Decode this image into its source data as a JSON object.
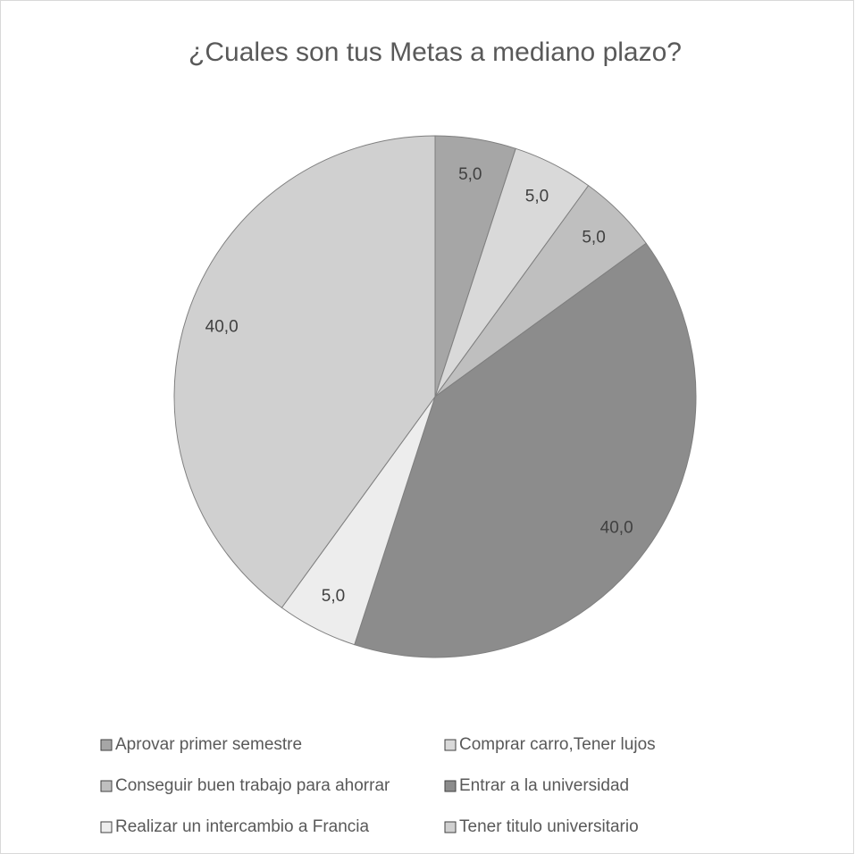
{
  "chart_data": {
    "type": "pie",
    "title": "¿Cuales son tus Metas a mediano plazo?",
    "categories": [
      "Aprovar primer semestre",
      "Comprar carro,Tener lujos",
      "Conseguir buen trabajo para ahorrar",
      "Entrar a la universidad",
      "Realizar un intercambio a Francia",
      "Tener titulo universitario"
    ],
    "values": [
      5,
      5,
      5,
      40,
      5,
      40
    ],
    "value_labels": [
      "5,0",
      "5,0",
      "5,0",
      "40,0",
      "5,0",
      "40,0"
    ],
    "colors": [
      "#a6a6a6",
      "#d9d9d9",
      "#bfbfbf",
      "#8c8c8c",
      "#ededed",
      "#d0d0d0"
    ],
    "legend": "bottom"
  }
}
